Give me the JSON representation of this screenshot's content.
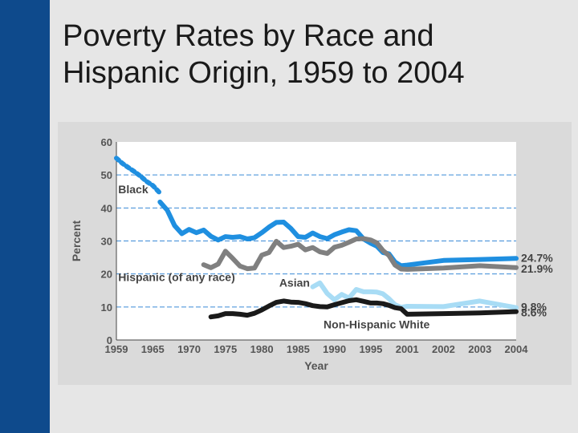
{
  "slide": {
    "title_line1": "Poverty Rates by Race and",
    "title_line2": "Hispanic Origin, 1959 to 2004",
    "colors": {
      "sidebar": "#0e4a8c",
      "background": "#e6e6e6",
      "panel": "#dadada",
      "plot_bg": "#ffffff",
      "gridline": "#3a8ad6"
    }
  },
  "chart_data": {
    "type": "line",
    "title": "Poverty Rates by Race and Hispanic Origin, 1959 to 2004",
    "xlabel": "Year",
    "ylabel": "Percent",
    "ylim": [
      0,
      60
    ],
    "yticks": [
      0,
      10,
      20,
      30,
      40,
      50,
      60
    ],
    "xlim": [
      1959,
      2004
    ],
    "xtick_labels": [
      "1959",
      "1965",
      "1970",
      "1975",
      "1980",
      "1985",
      "1990",
      "1995",
      "2001",
      "2002",
      "2003",
      "2004"
    ],
    "grid": "dashed horizontal at 10, 20, 30, 40, 50",
    "series": [
      {
        "name": "Black",
        "label": "Black",
        "color": "#1f8fe0",
        "end_label": "24.7%",
        "dashed_segment": [
          [
            1959,
            55.1
          ],
          [
            1960,
            53.5
          ],
          [
            1961,
            52.2
          ],
          [
            1962,
            51.0
          ],
          [
            1963,
            49.6
          ],
          [
            1964,
            48.0
          ],
          [
            1965,
            46.8
          ],
          [
            1966,
            44.5
          ]
        ],
        "points": [
          [
            1966,
            41.8
          ],
          [
            1967,
            39.3
          ],
          [
            1968,
            34.7
          ],
          [
            1969,
            32.2
          ],
          [
            1970,
            33.5
          ],
          [
            1971,
            32.5
          ],
          [
            1972,
            33.3
          ],
          [
            1973,
            31.4
          ],
          [
            1974,
            30.3
          ],
          [
            1975,
            31.3
          ],
          [
            1976,
            31.1
          ],
          [
            1977,
            31.3
          ],
          [
            1978,
            30.6
          ],
          [
            1979,
            31.0
          ],
          [
            1980,
            32.5
          ],
          [
            1981,
            34.2
          ],
          [
            1982,
            35.6
          ],
          [
            1983,
            35.7
          ],
          [
            1984,
            33.8
          ],
          [
            1985,
            31.3
          ],
          [
            1986,
            31.1
          ],
          [
            1987,
            32.4
          ],
          [
            1988,
            31.3
          ],
          [
            1989,
            30.7
          ],
          [
            1990,
            31.9
          ],
          [
            1991,
            32.7
          ],
          [
            1992,
            33.4
          ],
          [
            1993,
            33.1
          ],
          [
            1994,
            30.6
          ],
          [
            1995,
            29.3
          ],
          [
            1996,
            28.4
          ],
          [
            1997,
            26.5
          ],
          [
            1998,
            26.1
          ],
          [
            1999,
            23.6
          ],
          [
            2000,
            22.5
          ],
          [
            2001,
            22.7
          ],
          [
            2002,
            24.1
          ],
          [
            2003,
            24.4
          ],
          [
            2004,
            24.7
          ]
        ]
      },
      {
        "name": "Hispanic (of any race)",
        "label": "Hispanic (of any race)",
        "color": "#808080",
        "end_label": "21.9%",
        "points": [
          [
            1972,
            22.8
          ],
          [
            1973,
            21.9
          ],
          [
            1974,
            23.0
          ],
          [
            1975,
            26.9
          ],
          [
            1976,
            24.7
          ],
          [
            1977,
            22.4
          ],
          [
            1978,
            21.6
          ],
          [
            1979,
            21.8
          ],
          [
            1980,
            25.7
          ],
          [
            1981,
            26.5
          ],
          [
            1982,
            29.9
          ],
          [
            1983,
            28.0
          ],
          [
            1984,
            28.4
          ],
          [
            1985,
            29.0
          ],
          [
            1986,
            27.3
          ],
          [
            1987,
            28.0
          ],
          [
            1988,
            26.7
          ],
          [
            1989,
            26.2
          ],
          [
            1990,
            28.1
          ],
          [
            1991,
            28.7
          ],
          [
            1992,
            29.6
          ],
          [
            1993,
            30.6
          ],
          [
            1994,
            30.7
          ],
          [
            1995,
            30.3
          ],
          [
            1996,
            29.4
          ],
          [
            1997,
            27.1
          ],
          [
            1998,
            25.6
          ],
          [
            1999,
            22.7
          ],
          [
            2000,
            21.5
          ],
          [
            2001,
            21.4
          ],
          [
            2002,
            21.8
          ],
          [
            2003,
            22.5
          ],
          [
            2004,
            21.9
          ]
        ]
      },
      {
        "name": "Asian",
        "label": "Asian",
        "color": "#a8dcf5",
        "end_label": "9.8%",
        "points": [
          [
            1987,
            16.1
          ],
          [
            1988,
            17.3
          ],
          [
            1989,
            14.1
          ],
          [
            1990,
            12.2
          ],
          [
            1991,
            13.8
          ],
          [
            1992,
            12.7
          ],
          [
            1993,
            15.3
          ],
          [
            1994,
            14.6
          ],
          [
            1995,
            14.6
          ],
          [
            1996,
            14.5
          ],
          [
            1997,
            14.0
          ],
          [
            1998,
            12.5
          ],
          [
            1999,
            10.7
          ],
          [
            2000,
            9.9
          ],
          [
            2001,
            10.2
          ],
          [
            2002,
            10.1
          ],
          [
            2003,
            11.8
          ],
          [
            2004,
            9.8
          ]
        ]
      },
      {
        "name": "Non-Hispanic White",
        "label": "Non-Hispanic White",
        "color": "#1a1a1a",
        "end_label": "8.6%",
        "points": [
          [
            1973,
            7.0
          ],
          [
            1974,
            7.3
          ],
          [
            1975,
            8.0
          ],
          [
            1976,
            8.0
          ],
          [
            1977,
            7.8
          ],
          [
            1978,
            7.5
          ],
          [
            1979,
            8.1
          ],
          [
            1980,
            9.1
          ],
          [
            1981,
            10.3
          ],
          [
            1982,
            11.4
          ],
          [
            1983,
            11.8
          ],
          [
            1984,
            11.5
          ],
          [
            1985,
            11.4
          ],
          [
            1986,
            11.0
          ],
          [
            1987,
            10.4
          ],
          [
            1988,
            10.1
          ],
          [
            1989,
            10.0
          ],
          [
            1990,
            10.7
          ],
          [
            1991,
            11.3
          ],
          [
            1992,
            11.9
          ],
          [
            1993,
            12.2
          ],
          [
            1994,
            11.7
          ],
          [
            1995,
            11.2
          ],
          [
            1996,
            11.2
          ],
          [
            1997,
            11.0
          ],
          [
            1998,
            10.5
          ],
          [
            1999,
            9.8
          ],
          [
            2000,
            9.5
          ],
          [
            2001,
            7.8
          ],
          [
            2002,
            8.0
          ],
          [
            2003,
            8.2
          ],
          [
            2004,
            8.6
          ]
        ]
      }
    ]
  }
}
